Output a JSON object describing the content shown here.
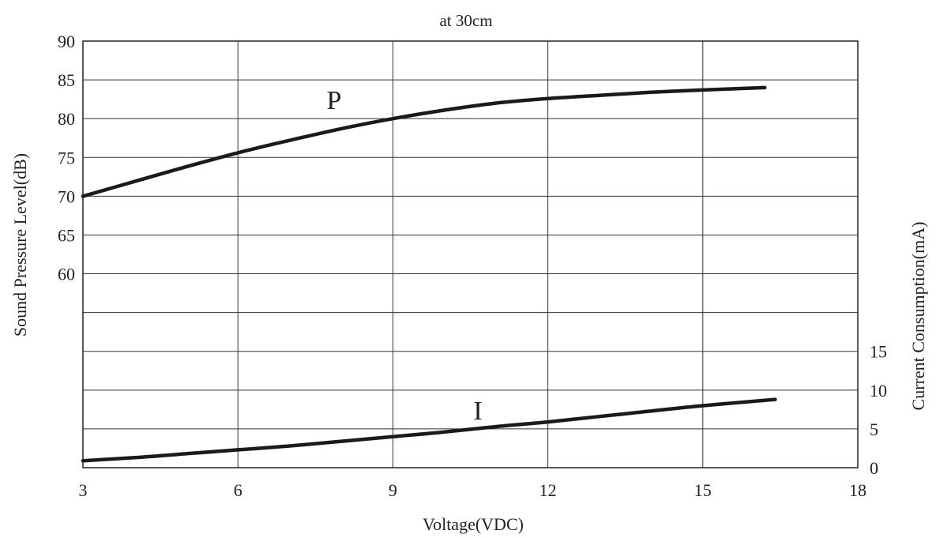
{
  "chart_data": {
    "type": "line",
    "title": "at 30cm",
    "xlabel": "Voltage(VDC)",
    "ylabel_left": "Sound Pressure Level(dB)",
    "ylabel_right": "Current Consumption(mA)",
    "x_ticks": [
      "3",
      "6",
      "9",
      "12",
      "15",
      "18"
    ],
    "y_left_ticks": [
      "90",
      "85",
      "80",
      "75",
      "70",
      "65",
      "60"
    ],
    "y_right_ticks": [
      "15",
      "10",
      "5",
      "0"
    ],
    "xlim": [
      3,
      18
    ],
    "grid": true,
    "series": [
      {
        "name": "P",
        "axis": "left",
        "x": [
          3,
          4,
          5,
          6,
          7,
          8,
          9,
          10,
          11,
          12,
          13,
          14,
          15,
          16.2
        ],
        "y": [
          70,
          71.9,
          73.8,
          75.6,
          77.2,
          78.7,
          80,
          81.1,
          82,
          82.6,
          83,
          83.4,
          83.7,
          84
        ]
      },
      {
        "name": "I",
        "axis": "right",
        "x": [
          3,
          4,
          5,
          6,
          7,
          8,
          9,
          10,
          11,
          12,
          13,
          14,
          15,
          16.4
        ],
        "y": [
          0.9,
          1.3,
          1.8,
          2.3,
          2.8,
          3.4,
          4.0,
          4.6,
          5.3,
          5.9,
          6.6,
          7.3,
          8.0,
          8.8
        ]
      }
    ]
  }
}
